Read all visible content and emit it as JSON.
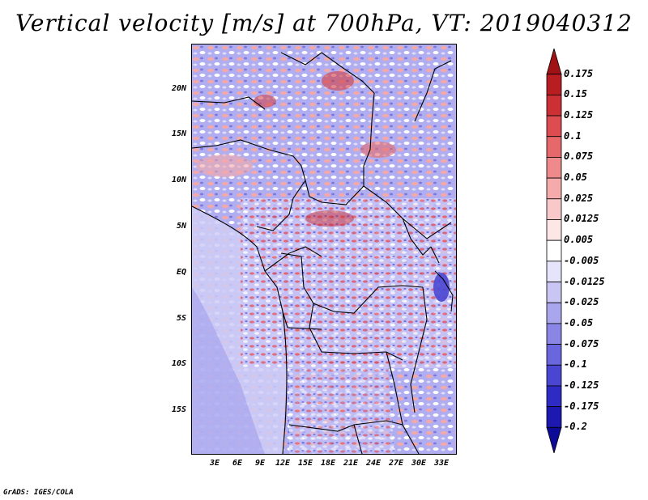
{
  "title": "Vertical velocity [m/s] at 700hPa, VT: 2019040312",
  "credit": "GrADS: IGES/COLA",
  "map": {
    "lat_labels": [
      "20N",
      "15N",
      "10N",
      "5N",
      "EQ",
      "5S",
      "10S",
      "15S"
    ],
    "lon_labels": [
      "3E",
      "6E",
      "9E",
      "12E",
      "15E",
      "18E",
      "21E",
      "24E",
      "27E",
      "30E",
      "33E"
    ]
  },
  "colorbar": {
    "labels": [
      "0.175",
      "0.15",
      "0.125",
      "0.1",
      "0.075",
      "0.05",
      "0.025",
      "0.0125",
      "0.005",
      "-0.005",
      "-0.0125",
      "-0.025",
      "-0.05",
      "-0.075",
      "-0.1",
      "-0.125",
      "-0.175",
      "-0.2"
    ],
    "colors": [
      "#a01214",
      "#b81d22",
      "#cc3035",
      "#dc4c50",
      "#e6686a",
      "#ee8a8b",
      "#f5aaab",
      "#f9c9ca",
      "#fde6e6",
      "#ffffff",
      "#e6e4fa",
      "#c9c6f4",
      "#aaa6ee",
      "#8a86e6",
      "#6a66de",
      "#4a46d2",
      "#2e2ac4",
      "#1c18b0",
      "#0e0a98"
    ]
  }
}
